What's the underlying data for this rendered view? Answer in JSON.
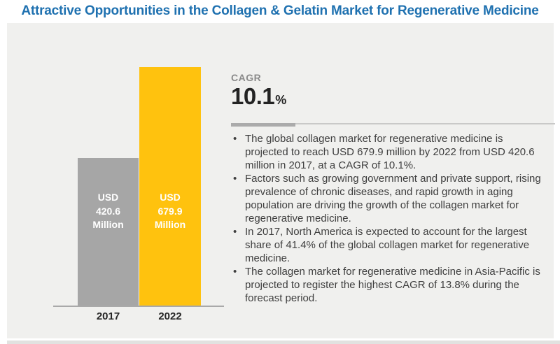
{
  "page": {
    "title": "Attractive Opportunities in the Collagen & Gelatin Market for Regenerative Medicine"
  },
  "colors": {
    "title_blue": "#1F71B0",
    "panel_bg": "#F0F0EE",
    "bar_2017": "#A6A6A6",
    "bar_2022": "#FFC20E",
    "axis_gray": "#A9A9A9",
    "bullet_text": "#3E3E3E",
    "bar_value_text": "#FFFFFF",
    "cagr_number": "#232323",
    "cagr_label_gray": "#8A8A8A"
  },
  "chart_data": {
    "type": "bar",
    "title": "",
    "xlabel": "",
    "ylabel": "",
    "categories": [
      "2017",
      "2022"
    ],
    "values": [
      420.6,
      679.9
    ],
    "unit": "USD Million",
    "value_label_prefix": "USD",
    "value_label_suffix": "Million",
    "bar_colors": [
      "#A6A6A6",
      "#FFC20E"
    ],
    "ylim": [
      0,
      680
    ],
    "grid": false,
    "legend": false
  },
  "cagr": {
    "label": "CAGR",
    "value": "10.1",
    "unit": "%"
  },
  "bullets": [
    "The global collagen market for regenerative medicine is projected to reach USD 679.9 million by 2022 from USD 420.6 million in 2017, at a CAGR of 10.1%.",
    "Factors such as growing government and private support, rising prevalence of chronic diseases, and rapid growth in aging population are driving the growth of the collagen market for regenerative medicine.",
    "In 2017, North America is expected to account for the largest share of 41.4% of the global collagen market for regenerative medicine.",
    "The collagen market for regenerative medicine in Asia-Pacific is projected to register the highest CAGR of 13.8% during the forecast period."
  ]
}
